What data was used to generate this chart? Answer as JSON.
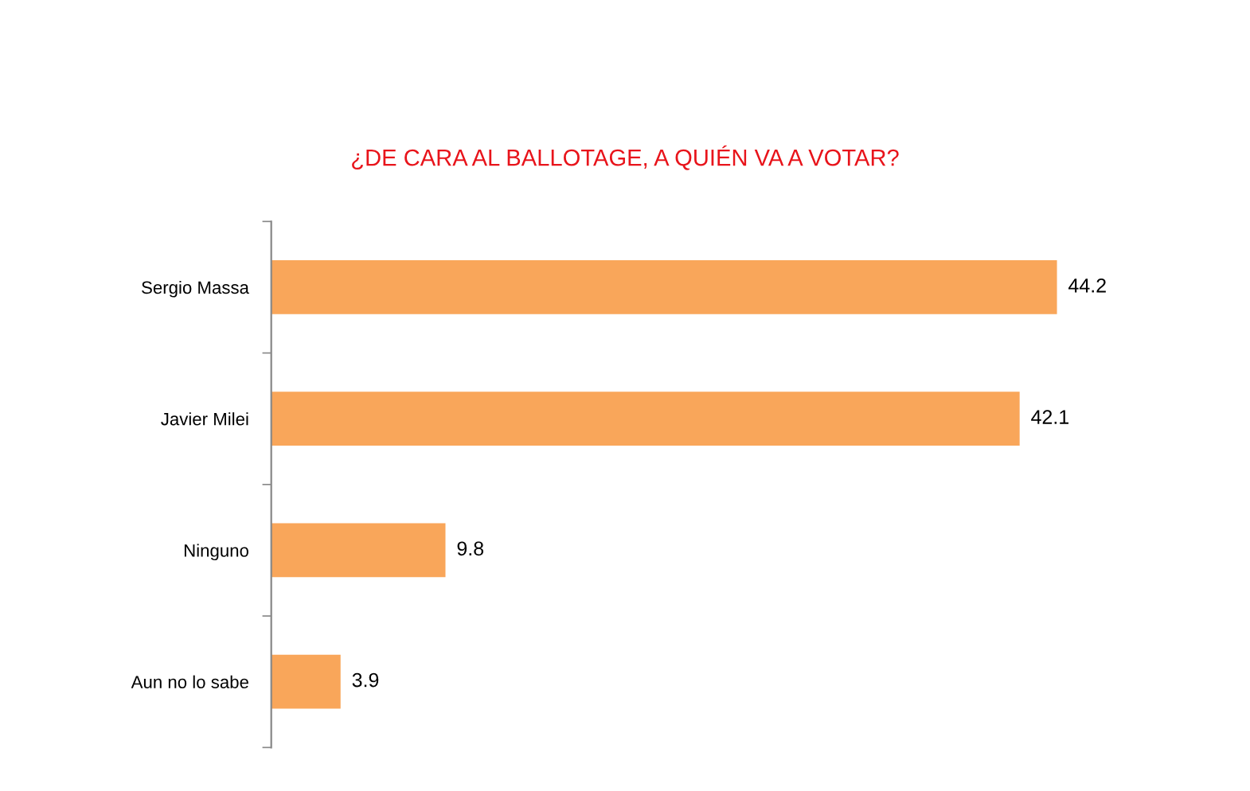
{
  "chart_data": {
    "type": "bar",
    "orientation": "horizontal",
    "title": "¿DE CARA AL BALLOTAGE, A QUIÉN VA A VOTAR?",
    "categories": [
      "Sergio Massa",
      "Javier Milei",
      "Ninguno",
      "Aun no lo sabe"
    ],
    "values": [
      44.2,
      42.1,
      9.8,
      3.9
    ],
    "color": "#f9a65a",
    "data_labels": true,
    "grid": false,
    "legend": false,
    "tick_labels": "y"
  }
}
